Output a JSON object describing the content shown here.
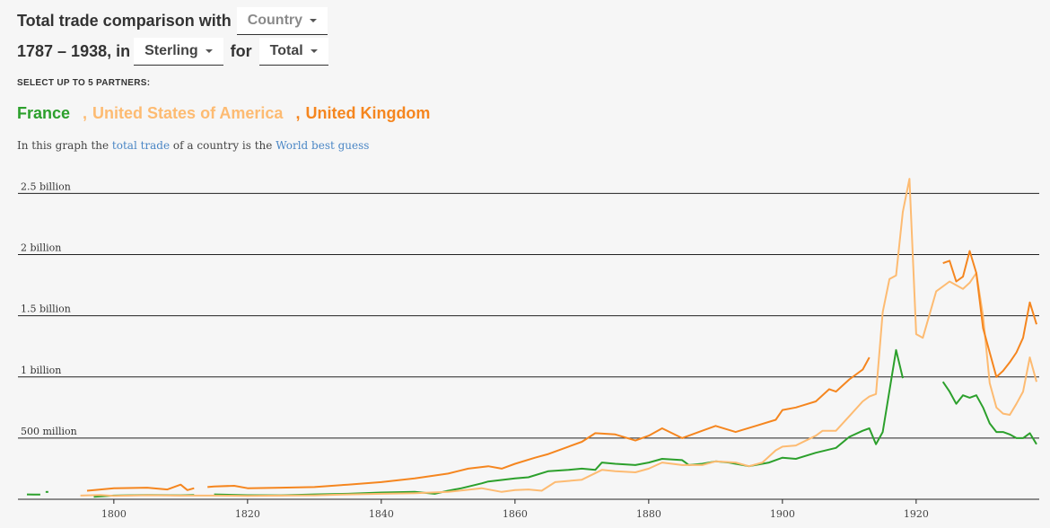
{
  "header": {
    "title_prefix": "Total trade comparison with",
    "entity_dropdown": "Country",
    "years": "1787 – 1938, in",
    "currency_dropdown": "Sterling",
    "for_label": "for",
    "flow_dropdown": "Total"
  },
  "select_label": "SELECT UP TO 5 PARTNERS:",
  "partners": [
    {
      "name": "France",
      "color": "#2ca02c"
    },
    {
      "name": "United States of America",
      "color": "#fdbb72"
    },
    {
      "name": "United Kingdom",
      "color": "#f5861f"
    }
  ],
  "separator": ",",
  "info": {
    "text1": "In this graph the",
    "link1": "total trade",
    "text2": "of a country is the",
    "link2": "World best guess"
  },
  "chart_data": {
    "type": "line",
    "xlim": [
      1787,
      1938
    ],
    "ylim": [
      0,
      2650000000
    ],
    "x_ticks": [
      1800,
      1820,
      1840,
      1860,
      1880,
      1900,
      1920
    ],
    "y_ticks": [
      {
        "value": 500000000,
        "label": "500 million"
      },
      {
        "value": 1000000000,
        "label": "1 billion"
      },
      {
        "value": 1500000000,
        "label": "1.5 billion"
      },
      {
        "value": 2000000000,
        "label": "2 billion"
      },
      {
        "value": 2500000000,
        "label": "2.5 billion"
      }
    ],
    "series": [
      {
        "name": "France",
        "color": "#2ca02c",
        "segments": [
          [
            [
              1787,
              40000000
            ],
            [
              1788,
              38000000
            ],
            [
              1789,
              38000000
            ]
          ],
          [
            [
              1790,
              60000000
            ]
          ],
          [
            [
              1797,
              20000000
            ],
            [
              1800,
              30000000
            ],
            [
              1805,
              35000000
            ],
            [
              1810,
              32000000
            ],
            [
              1812,
              35000000
            ]
          ],
          [
            [
              1815,
              40000000
            ],
            [
              1820,
              33000000
            ],
            [
              1825,
              32000000
            ],
            [
              1830,
              40000000
            ],
            [
              1835,
              45000000
            ],
            [
              1840,
              55000000
            ],
            [
              1845,
              60000000
            ],
            [
              1848,
              45000000
            ],
            [
              1850,
              70000000
            ],
            [
              1852,
              90000000
            ],
            [
              1855,
              130000000
            ],
            [
              1856,
              145000000
            ],
            [
              1860,
              170000000
            ],
            [
              1862,
              180000000
            ],
            [
              1865,
              230000000
            ],
            [
              1868,
              240000000
            ],
            [
              1870,
              250000000
            ],
            [
              1872,
              240000000
            ],
            [
              1873,
              300000000
            ],
            [
              1875,
              290000000
            ],
            [
              1878,
              280000000
            ],
            [
              1880,
              300000000
            ],
            [
              1882,
              330000000
            ],
            [
              1885,
              320000000
            ],
            [
              1886,
              280000000
            ],
            [
              1888,
              290000000
            ],
            [
              1890,
              310000000
            ],
            [
              1892,
              300000000
            ],
            [
              1895,
              270000000
            ],
            [
              1898,
              300000000
            ],
            [
              1900,
              340000000
            ],
            [
              1902,
              330000000
            ],
            [
              1905,
              380000000
            ],
            [
              1908,
              420000000
            ],
            [
              1910,
              510000000
            ],
            [
              1912,
              560000000
            ],
            [
              1913,
              580000000
            ],
            [
              1914,
              450000000
            ],
            [
              1915,
              550000000
            ],
            [
              1917,
              1220000000
            ],
            [
              1918,
              990000000
            ]
          ],
          [
            [
              1924,
              960000000
            ],
            [
              1925,
              880000000
            ],
            [
              1926,
              780000000
            ],
            [
              1927,
              850000000
            ],
            [
              1928,
              830000000
            ],
            [
              1929,
              850000000
            ],
            [
              1930,
              750000000
            ],
            [
              1931,
              620000000
            ],
            [
              1932,
              550000000
            ],
            [
              1933,
              550000000
            ],
            [
              1934,
              530000000
            ],
            [
              1935,
              500000000
            ],
            [
              1936,
              500000000
            ],
            [
              1937,
              540000000
            ],
            [
              1938,
              450000000
            ]
          ]
        ]
      },
      {
        "name": "United States of America",
        "color": "#fdbb72",
        "segments": [
          [
            [
              1795,
              30000000
            ],
            [
              1798,
              35000000
            ],
            [
              1800,
              28000000
            ],
            [
              1805,
              33000000
            ],
            [
              1810,
              30000000
            ],
            [
              1815,
              30000000
            ],
            [
              1820,
              28000000
            ],
            [
              1825,
              30000000
            ],
            [
              1830,
              32000000
            ],
            [
              1835,
              40000000
            ],
            [
              1840,
              45000000
            ],
            [
              1845,
              50000000
            ],
            [
              1850,
              60000000
            ],
            [
              1855,
              90000000
            ],
            [
              1858,
              60000000
            ],
            [
              1860,
              75000000
            ],
            [
              1862,
              80000000
            ],
            [
              1864,
              70000000
            ],
            [
              1866,
              140000000
            ],
            [
              1870,
              160000000
            ],
            [
              1873,
              240000000
            ],
            [
              1875,
              230000000
            ],
            [
              1878,
              220000000
            ],
            [
              1880,
              250000000
            ],
            [
              1882,
              300000000
            ],
            [
              1885,
              280000000
            ],
            [
              1888,
              280000000
            ],
            [
              1890,
              310000000
            ],
            [
              1893,
              300000000
            ],
            [
              1895,
              270000000
            ],
            [
              1897,
              300000000
            ],
            [
              1899,
              400000000
            ],
            [
              1900,
              430000000
            ],
            [
              1902,
              440000000
            ],
            [
              1905,
              520000000
            ],
            [
              1906,
              560000000
            ],
            [
              1908,
              560000000
            ],
            [
              1910,
              680000000
            ],
            [
              1912,
              800000000
            ],
            [
              1913,
              840000000
            ],
            [
              1914,
              860000000
            ],
            [
              1915,
              1530000000
            ],
            [
              1916,
              1800000000
            ],
            [
              1917,
              1830000000
            ],
            [
              1918,
              2350000000
            ],
            [
              1919,
              2620000000
            ],
            [
              1920,
              1350000000
            ],
            [
              1921,
              1320000000
            ],
            [
              1923,
              1700000000
            ],
            [
              1925,
              1780000000
            ],
            [
              1927,
              1720000000
            ],
            [
              1928,
              1770000000
            ],
            [
              1929,
              1850000000
            ],
            [
              1930,
              1500000000
            ],
            [
              1931,
              950000000
            ],
            [
              1932,
              750000000
            ],
            [
              1933,
              700000000
            ],
            [
              1934,
              690000000
            ],
            [
              1935,
              780000000
            ],
            [
              1936,
              880000000
            ],
            [
              1937,
              1160000000
            ],
            [
              1938,
              960000000
            ]
          ]
        ]
      },
      {
        "name": "United Kingdom",
        "color": "#f5861f",
        "segments": [
          [
            [
              1796,
              70000000
            ],
            [
              1798,
              80000000
            ],
            [
              1800,
              90000000
            ],
            [
              1805,
              95000000
            ],
            [
              1808,
              80000000
            ],
            [
              1810,
              120000000
            ],
            [
              1811,
              75000000
            ],
            [
              1812,
              90000000
            ]
          ],
          [
            [
              1814,
              100000000
            ],
            [
              1815,
              105000000
            ],
            [
              1818,
              110000000
            ],
            [
              1820,
              90000000
            ],
            [
              1825,
              95000000
            ],
            [
              1830,
              100000000
            ],
            [
              1835,
              120000000
            ],
            [
              1840,
              140000000
            ],
            [
              1845,
              170000000
            ],
            [
              1850,
              210000000
            ],
            [
              1853,
              250000000
            ],
            [
              1856,
              270000000
            ],
            [
              1858,
              250000000
            ],
            [
              1860,
              290000000
            ],
            [
              1863,
              340000000
            ],
            [
              1865,
              370000000
            ],
            [
              1868,
              430000000
            ],
            [
              1870,
              470000000
            ],
            [
              1872,
              540000000
            ],
            [
              1875,
              530000000
            ],
            [
              1878,
              480000000
            ],
            [
              1880,
              520000000
            ],
            [
              1882,
              580000000
            ],
            [
              1885,
              500000000
            ],
            [
              1888,
              560000000
            ],
            [
              1890,
              600000000
            ],
            [
              1893,
              550000000
            ],
            [
              1896,
              600000000
            ],
            [
              1899,
              650000000
            ],
            [
              1900,
              730000000
            ],
            [
              1902,
              750000000
            ],
            [
              1905,
              800000000
            ],
            [
              1907,
              900000000
            ],
            [
              1908,
              880000000
            ],
            [
              1910,
              980000000
            ],
            [
              1912,
              1060000000
            ],
            [
              1913,
              1160000000
            ]
          ],
          [
            [
              1924,
              1930000000
            ],
            [
              1925,
              1950000000
            ],
            [
              1926,
              1780000000
            ],
            [
              1927,
              1820000000
            ],
            [
              1928,
              2030000000
            ],
            [
              1929,
              1850000000
            ],
            [
              1930,
              1400000000
            ],
            [
              1931,
              1200000000
            ],
            [
              1932,
              1000000000
            ],
            [
              1933,
              1050000000
            ],
            [
              1934,
              1120000000
            ],
            [
              1935,
              1200000000
            ],
            [
              1936,
              1320000000
            ],
            [
              1937,
              1610000000
            ],
            [
              1938,
              1430000000
            ]
          ]
        ]
      }
    ]
  }
}
